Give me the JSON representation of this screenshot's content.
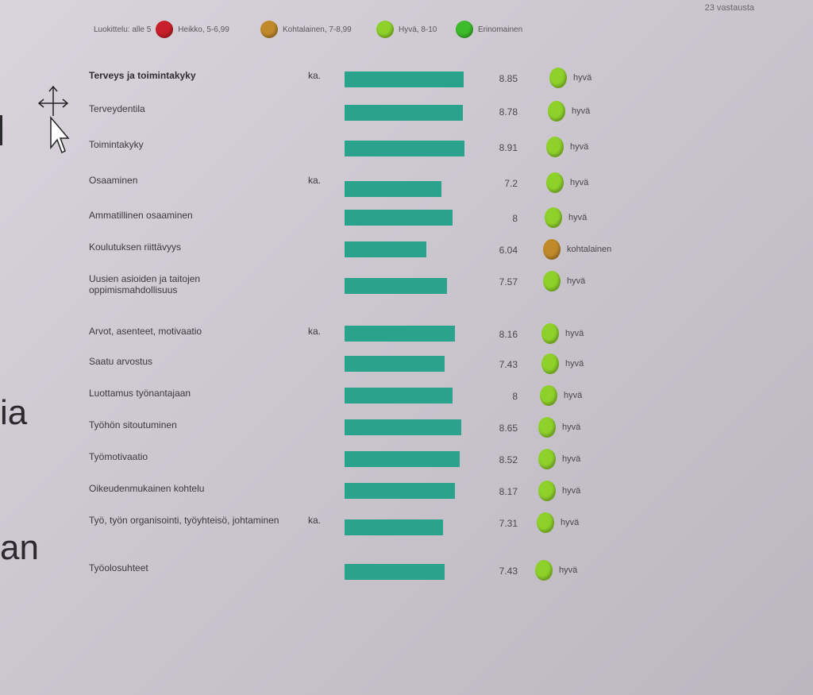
{
  "top_right": "23 vastausta",
  "legend": [
    {
      "text": "Luokittelu: alle 5",
      "color": "#c8202a",
      "after": "Heikko, 5-6,99"
    },
    {
      "text": "",
      "color": "#c08a2a",
      "after": "Kohtalainen, 7-8,99"
    },
    {
      "text": "",
      "color": "#8ed12a",
      "after": "Hyvä, 8-10"
    },
    {
      "text": "",
      "color": "#3dbb2a",
      "after": "Erinomainen"
    }
  ],
  "side_text": {
    "ia": "ia",
    "an": "an"
  },
  "rows": [
    {
      "label": "Terveys ja toimintakyky",
      "head": true,
      "ka": "ka.",
      "bar": 8.85,
      "value": "8.85",
      "color": "#8ed12a",
      "rating": "hyvä"
    },
    {
      "label": "Terveydentila",
      "head": false,
      "ka": "",
      "bar": 8.78,
      "value": "8.78",
      "color": "#8ed12a",
      "rating": "hyvä"
    },
    {
      "label": "Toimintakyky",
      "head": false,
      "ka": "",
      "bar": 8.91,
      "value": "8.91",
      "color": "#8ed12a",
      "rating": "hyvä"
    },
    {
      "label": "Osaaminen",
      "head": false,
      "ka": "ka.",
      "bar": 7.2,
      "value": "7.2",
      "color": "#8ed12a",
      "rating": "hyvä"
    },
    {
      "label": "Ammatillinen osaaminen",
      "head": false,
      "ka": "",
      "bar": 8,
      "value": "8",
      "color": "#8ed12a",
      "rating": "hyvä"
    },
    {
      "label": "Koulutuksen riittävyys",
      "head": false,
      "ka": "",
      "bar": 6.04,
      "value": "6.04",
      "color": "#c08a2a",
      "rating": "kohtalainen"
    },
    {
      "label": "Uusien asioiden ja taitojen oppimismahdollisuus",
      "head": false,
      "ka": "",
      "bar": 7.57,
      "value": "7.57",
      "color": "#8ed12a",
      "rating": "hyvä"
    },
    {
      "label": "Arvot, asenteet, motivaatio",
      "head": false,
      "ka": "ka.",
      "bar": 8.16,
      "value": "8.16",
      "color": "#8ed12a",
      "rating": "hyvä"
    },
    {
      "label": "Saatu arvostus",
      "head": false,
      "ka": "",
      "bar": 7.43,
      "value": "7.43",
      "color": "#8ed12a",
      "rating": "hyvä"
    },
    {
      "label": "Luottamus työnantajaan",
      "head": false,
      "ka": "",
      "bar": 8,
      "value": "8",
      "color": "#8ed12a",
      "rating": "hyvä"
    },
    {
      "label": "Työhön sitoutuminen",
      "head": false,
      "ka": "",
      "bar": 8.65,
      "value": "8.65",
      "color": "#8ed12a",
      "rating": "hyvä"
    },
    {
      "label": "Työmotivaatio",
      "head": false,
      "ka": "",
      "bar": 8.52,
      "value": "8.52",
      "color": "#8ed12a",
      "rating": "hyvä"
    },
    {
      "label": "Oikeudenmukainen kohtelu",
      "head": false,
      "ka": "",
      "bar": 8.17,
      "value": "8.17",
      "color": "#8ed12a",
      "rating": "hyvä"
    },
    {
      "label": "Työ, työn organisointi, työyhteisö, johtaminen",
      "head": false,
      "ka": "ka.",
      "bar": 7.31,
      "value": "7.31",
      "color": "#8ed12a",
      "rating": "hyvä"
    },
    {
      "label": "Työolosuhteet",
      "head": false,
      "ka": "",
      "bar": 7.43,
      "value": "7.43",
      "color": "#8ed12a",
      "rating": "hyvä"
    }
  ]
}
